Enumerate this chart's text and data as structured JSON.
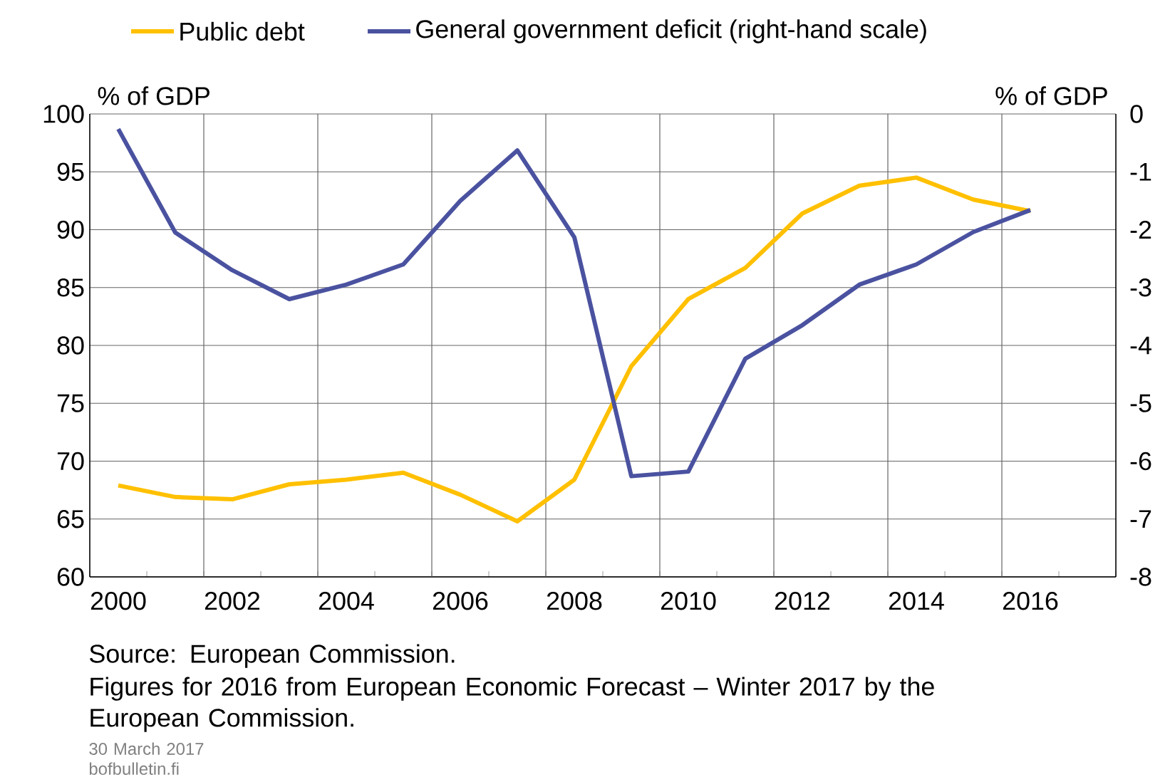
{
  "chart_data": {
    "type": "line",
    "categories": [
      "2000",
      null,
      "2002",
      null,
      "2004",
      null,
      "2006",
      null,
      "2008",
      null,
      "2010",
      null,
      "2012",
      null,
      "2014",
      null,
      "2016",
      null
    ],
    "series": [
      {
        "name": "Public debt",
        "color": "#ffc000",
        "values": [
          67.9,
          66.9,
          66.7,
          68.0,
          68.4,
          69.0,
          67.1,
          64.8,
          68.4,
          78.2,
          84.0,
          86.7,
          91.4,
          93.8,
          94.5,
          92.6,
          91.6,
          null
        ]
      },
      {
        "name": "General government deficit (right-hand scale)",
        "color": "#4a52a0",
        "axis": "y2",
        "values": [
          -0.26,
          -2.05,
          -2.7,
          -3.2,
          -2.95,
          -2.6,
          -1.5,
          -0.63,
          -2.13,
          -6.26,
          -6.18,
          -4.23,
          -3.65,
          -2.95,
          -2.6,
          -2.04,
          -1.66,
          null
        ]
      }
    ],
    "ylabel": "% of GDP",
    "y2label": "% of GDP",
    "ylim": [
      60,
      100
    ],
    "yticks": [
      60,
      65,
      70,
      75,
      80,
      85,
      90,
      95,
      100
    ],
    "y2lim": [
      -8,
      0
    ],
    "y2ticks": [
      -8,
      -7,
      -6,
      -5,
      -4,
      -3,
      -2,
      -1,
      0
    ],
    "grid": true,
    "legend": "top",
    "marker": "none",
    "line_style": "solid",
    "annotations": [
      "Source: European Commission.",
      "Figures for 2016 from European Economic Forecast – Winter 2017 by the European Commission.",
      "30 March 2017",
      "bofbulletin.fi"
    ]
  }
}
